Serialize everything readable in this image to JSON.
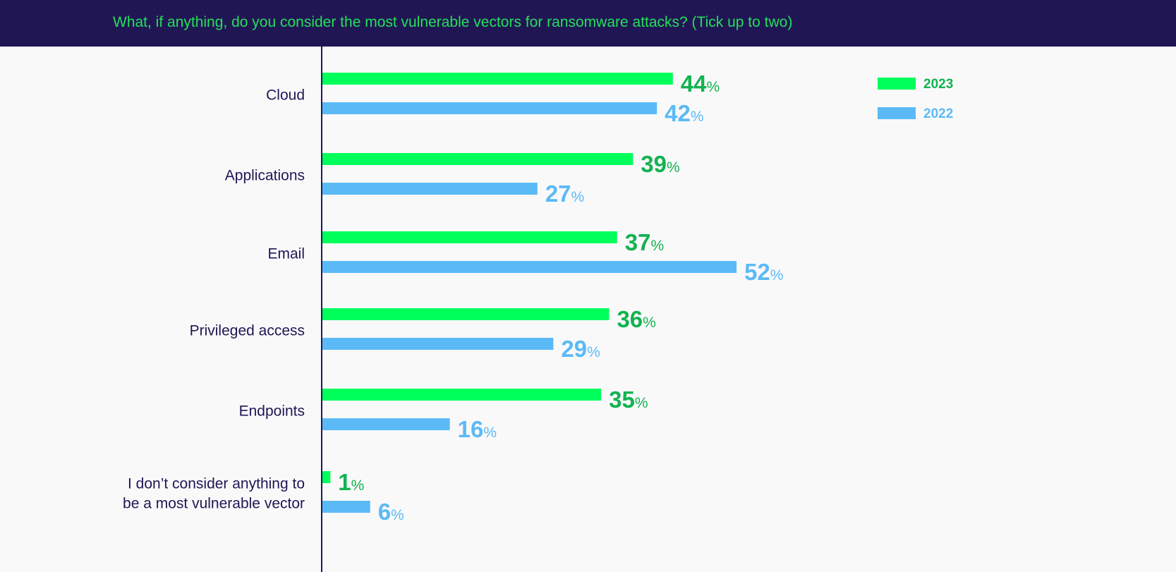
{
  "chart_data": {
    "type": "bar",
    "orientation": "horizontal",
    "title": "What, if anything, do you consider the most vulnerable vectors for ransomware attacks? (Tick up to two)",
    "categories": [
      "Cloud",
      "Applications",
      "Email",
      "Privileged access",
      "Endpoints",
      "I don’t consider anything to be a most vulnerable vector"
    ],
    "category_lines": [
      [
        "Cloud"
      ],
      [
        "Applications"
      ],
      [
        "Email"
      ],
      [
        "Privileged access"
      ],
      [
        "Endpoints"
      ],
      [
        "I don’t consider anything to",
        "be a most vulnerable vector"
      ]
    ],
    "series": [
      {
        "name": "2023",
        "color": "#00ff5a",
        "label_color": "#12b350",
        "values": [
          44,
          39,
          37,
          36,
          35,
          1
        ]
      },
      {
        "name": "2022",
        "color": "#5bbaf6",
        "label_color": "#5bbaf6",
        "values": [
          42,
          27,
          52,
          29,
          16,
          6
        ]
      }
    ],
    "value_suffix": "%",
    "xlim": [
      0,
      100
    ],
    "grid": false,
    "legend_position": "top-right",
    "colors": {
      "header_bg": "#211654",
      "title": "#22e05a",
      "axis": "#211654",
      "category_text": "#211654",
      "background": "#faf9fa"
    }
  }
}
